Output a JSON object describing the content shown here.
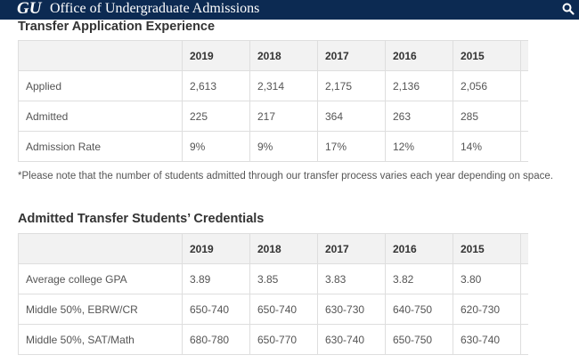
{
  "header": {
    "logo": "GU",
    "site_title": "Office of Undergraduate Admissions",
    "search_icon": "search-icon"
  },
  "sections": [
    {
      "title": "Transfer Application Experience",
      "years": [
        "2019",
        "2018",
        "2017",
        "2016",
        "2015"
      ],
      "rows": [
        {
          "label": "Applied",
          "values": [
            "2,613",
            "2,314",
            "2,175",
            "2,136",
            "2,056"
          ]
        },
        {
          "label": "Admitted",
          "values": [
            "225",
            "217",
            "364",
            "263",
            "285"
          ]
        },
        {
          "label": "Admission Rate",
          "values": [
            "9%",
            "9%",
            "17%",
            "12%",
            "14%"
          ]
        }
      ]
    },
    {
      "title": "Admitted Transfer Students’ Credentials",
      "years": [
        "2019",
        "2018",
        "2017",
        "2016",
        "2015"
      ],
      "rows": [
        {
          "label": "Average college GPA",
          "values": [
            "3.89",
            "3.85",
            "3.83",
            "3.82",
            "3.80"
          ]
        },
        {
          "label": "Middle 50%, EBRW/CR",
          "values": [
            "650-740",
            "650-740",
            "630-730",
            "640-750",
            "620-730"
          ]
        },
        {
          "label": "Middle 50%, SAT/Math",
          "values": [
            "680-780",
            "650-770",
            "630-740",
            "650-750",
            "630-740"
          ]
        }
      ]
    }
  ],
  "note": "*Please note that the number of students admitted through our transfer process varies each year depending on space."
}
